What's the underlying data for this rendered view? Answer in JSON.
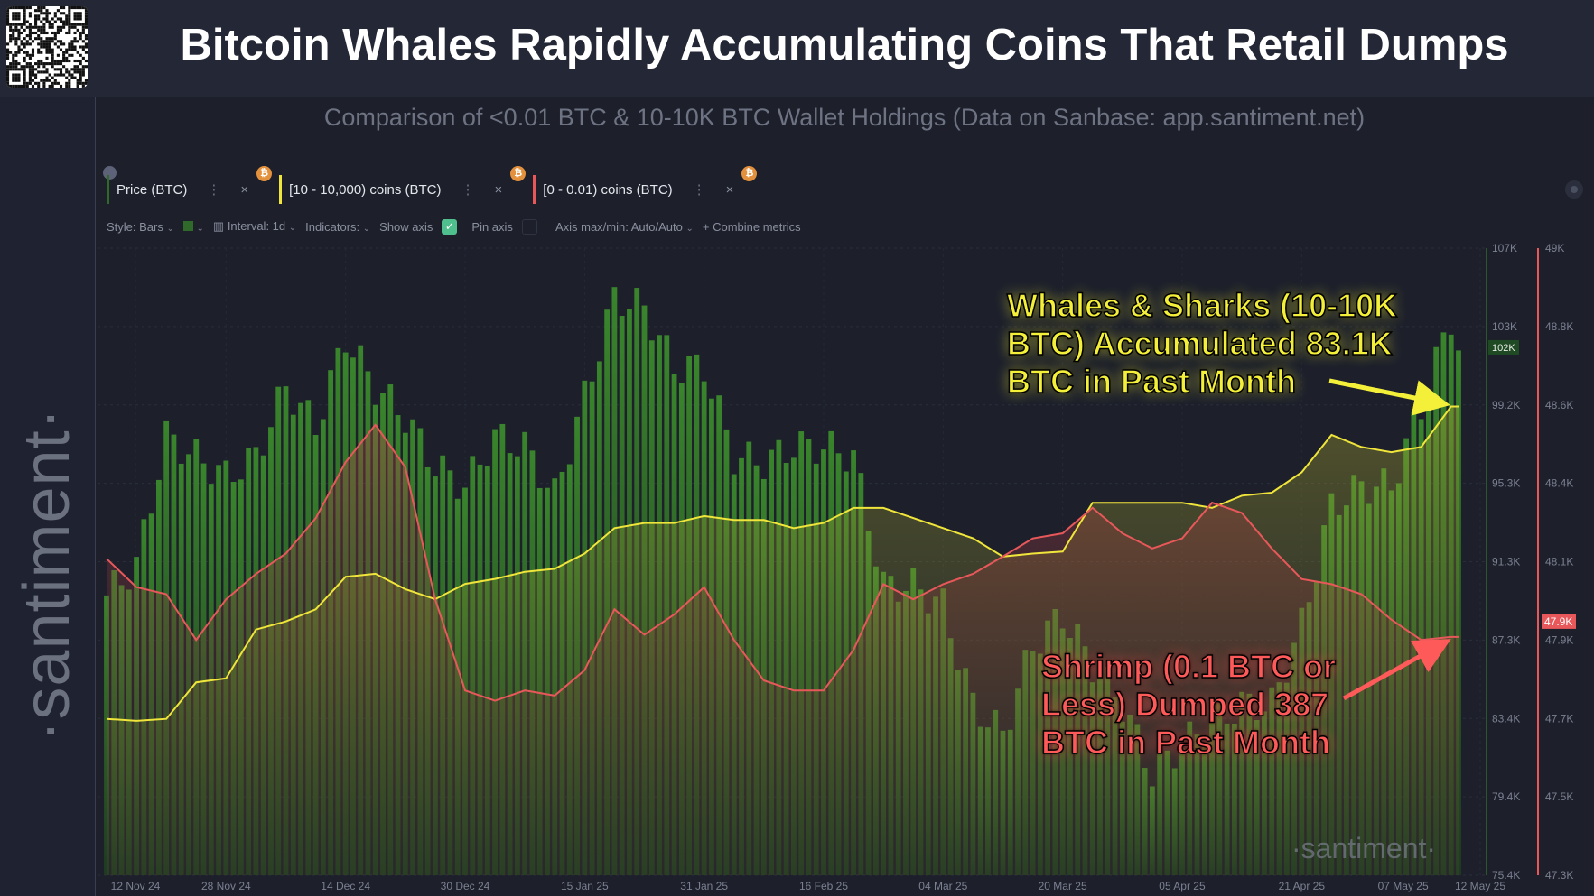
{
  "header": {
    "title": "Bitcoin Whales Rapidly Accumulating Coins That Retail Dumps",
    "subtitle": "Comparison of <0.01 BTC & 10-10K BTC Wallet Holdings (Data on Sanbase: app.santiment.net)",
    "brand": "·santiment·",
    "qr_icon": "qr-code-icon"
  },
  "tabs": [
    {
      "label": "Price (BTC)",
      "color": "#2f6a2a"
    },
    {
      "label": "[10 - 10,000) coins (BTC)",
      "color": "#f0e53a"
    },
    {
      "label": "[0 - 0.01) coins (BTC)",
      "color": "#e8585a"
    }
  ],
  "toolbar": {
    "style": "Style: Bars",
    "interval": "Interval: 1d",
    "indicators": "Indicators:",
    "show_axis": "Show axis",
    "show_axis_checked": true,
    "pin_axis": "Pin axis",
    "pin_axis_checked": false,
    "axis_maxmin": "Axis max/min: Auto/Auto",
    "combine": "Combine metrics"
  },
  "colors": {
    "price": "#2f6a2a",
    "whales": "#f0e53a",
    "shrimp": "#e8585a",
    "background": "#1d202b"
  },
  "annotations": {
    "whales": [
      "Whales & Sharks (10-10K",
      "BTC) Accumulated 83.1K",
      "BTC in Past Month"
    ],
    "shrimp": [
      "Shrimp (0.1 BTC or",
      "Less) Dumped 387",
      "BTC in Past Month"
    ]
  },
  "watermark": "·santiment·",
  "chart_data": {
    "type": "bar+line",
    "title": "Bitcoin Whales Rapidly Accumulating Coins That Retail Dumps",
    "subtitle": "Comparison of <0.01 BTC & 10-10K BTC Wallet Holdings (Data on Sanbase: app.santiment.net)",
    "x_tick_labels": [
      "12 Nov 24",
      "28 Nov 24",
      "14 Dec 24",
      "30 Dec 24",
      "15 Jan 25",
      "31 Jan 25",
      "16 Feb 25",
      "04 Mar 25",
      "20 Mar 25",
      "05 Apr 25",
      "21 Apr 25",
      "07 May 25",
      "12 May 25"
    ],
    "x": [
      "2024-11-12",
      "2024-11-16",
      "2024-11-20",
      "2024-11-24",
      "2024-11-28",
      "2024-12-02",
      "2024-12-06",
      "2024-12-10",
      "2024-12-14",
      "2024-12-18",
      "2024-12-22",
      "2024-12-26",
      "2024-12-30",
      "2025-01-03",
      "2025-01-07",
      "2025-01-11",
      "2025-01-15",
      "2025-01-19",
      "2025-01-23",
      "2025-01-27",
      "2025-01-31",
      "2025-02-04",
      "2025-02-08",
      "2025-02-12",
      "2025-02-16",
      "2025-02-20",
      "2025-02-24",
      "2025-02-28",
      "2025-03-04",
      "2025-03-08",
      "2025-03-12",
      "2025-03-16",
      "2025-03-20",
      "2025-03-24",
      "2025-03-28",
      "2025-04-01",
      "2025-04-05",
      "2025-04-09",
      "2025-04-13",
      "2025-04-17",
      "2025-04-21",
      "2025-04-25",
      "2025-04-29",
      "2025-05-03",
      "2025-05-07",
      "2025-05-11",
      "2025-05-12"
    ],
    "left_axis": {
      "ticks": [
        "107K",
        "103K",
        "99.2K",
        "95.3K",
        "91.3K",
        "87.3K",
        "83.4K",
        "79.4K",
        "75.4K"
      ],
      "range": [
        75.4,
        107
      ],
      "unit": "K",
      "current_label": "102K",
      "current_value": 102
    },
    "right_axis": {
      "ticks": [
        "49K",
        "48.8K",
        "48.6K",
        "48.4K",
        "48.1K",
        "47.9K",
        "47.7K",
        "47.5K",
        "47.3K"
      ],
      "range": [
        47.3,
        49
      ],
      "unit": "K",
      "current_label": "47.9K",
      "current_value": 47.946
    },
    "grid": true,
    "series": [
      {
        "name": "Price (BTC)",
        "type": "bar",
        "axis": "left",
        "color": "#2f6a2a",
        "values": [
          89.5,
          91,
          97.5,
          96.5,
          95.5,
          96.5,
          100,
          98,
          102.5,
          100,
          98.5,
          96,
          95,
          97.5,
          97,
          94.5,
          99.5,
          104.5,
          104,
          101,
          101,
          96.5,
          96.2,
          97,
          97,
          96.5,
          90,
          90,
          89,
          84,
          82.5,
          87,
          88.5,
          86,
          84,
          80.5,
          82,
          83,
          84,
          84,
          88,
          94,
          95,
          95,
          99,
          103.5,
          102
        ]
      },
      {
        "name": "[10 - 10,000) coins (BTC)",
        "type": "line",
        "axis": "left",
        "color": "#f0e53a",
        "values": [
          83.28,
          83.18,
          83.28,
          85.12,
          85.32,
          87.78,
          88.19,
          88.8,
          90.44,
          90.59,
          89.82,
          89.31,
          90.08,
          90.33,
          90.69,
          90.84,
          91.61,
          92.89,
          93.15,
          93.15,
          93.5,
          93.3,
          93.3,
          92.89,
          93.15,
          93.91,
          93.91,
          93.4,
          92.89,
          92.38,
          91.46,
          91.61,
          91.71,
          94.17,
          94.17,
          94.17,
          94.17,
          93.91,
          94.53,
          94.68,
          95.7,
          97.59,
          96.98,
          96.72,
          96.98,
          99.02,
          99.02
        ]
      },
      {
        "name": "[0 - 0.01) coins (BTC)",
        "type": "line",
        "axis": "right",
        "color": "#e8585a",
        "values": [
          48.158,
          48.081,
          48.062,
          47.938,
          48.048,
          48.117,
          48.172,
          48.268,
          48.42,
          48.521,
          48.406,
          48.048,
          47.801,
          47.773,
          47.801,
          47.787,
          47.856,
          48.021,
          47.952,
          48.007,
          48.081,
          47.938,
          47.828,
          47.801,
          47.801,
          47.911,
          48.089,
          48.048,
          48.089,
          48.117,
          48.164,
          48.213,
          48.227,
          48.296,
          48.227,
          48.186,
          48.213,
          48.31,
          48.282,
          48.186,
          48.103,
          48.089,
          48.062,
          47.993,
          47.938,
          47.946,
          47.946
        ]
      }
    ]
  }
}
